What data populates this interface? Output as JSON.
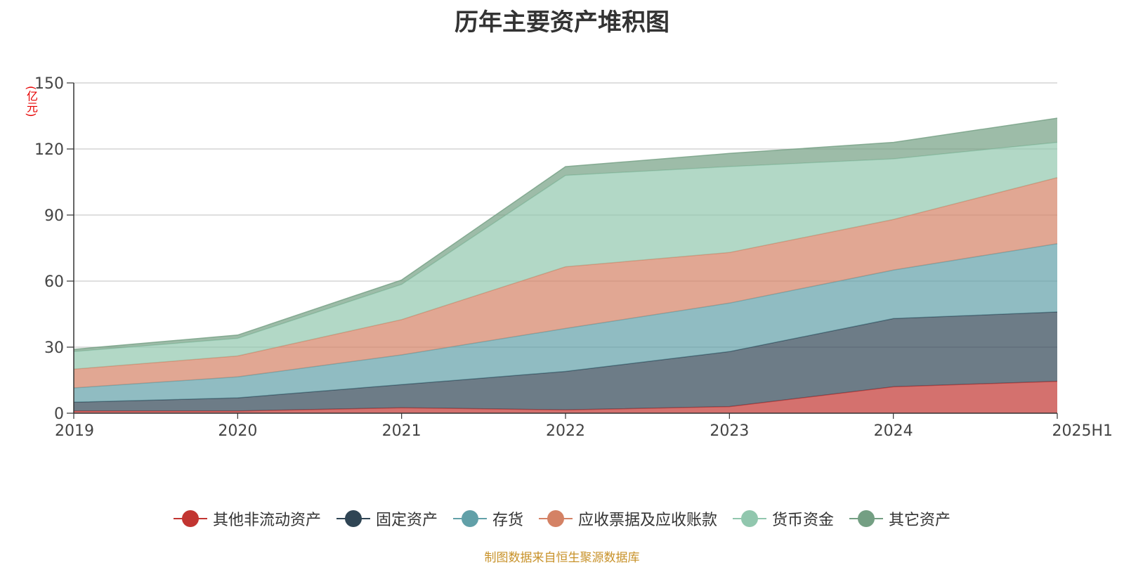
{
  "title": "历年主要资产堆积图",
  "unit_label": "(亿元)",
  "source": "制图数据来自恒生聚源数据库",
  "chart_data": {
    "type": "area",
    "stacked": true,
    "title": "历年主要资产堆积图",
    "ylabel": "(亿元)",
    "ylim": [
      0,
      150
    ],
    "yticks": [
      0,
      30,
      60,
      90,
      120,
      150
    ],
    "grid": true,
    "legend_position": "bottom",
    "categories": [
      "2019",
      "2020",
      "2021",
      "2022",
      "2023",
      "2024",
      "2025H1"
    ],
    "series": [
      {
        "name": "其他非流动资产",
        "color": "#c23531",
        "values": [
          1.0,
          1.0,
          2.5,
          1.5,
          3.0,
          12.0,
          14.5
        ]
      },
      {
        "name": "固定资产",
        "color": "#2f4554",
        "values": [
          4.0,
          6.0,
          10.5,
          17.5,
          25.0,
          31.0,
          31.5
        ]
      },
      {
        "name": "存货",
        "color": "#61a0a8",
        "values": [
          6.5,
          9.5,
          13.5,
          19.5,
          22.0,
          22.0,
          31.0
        ]
      },
      {
        "name": "应收票据及应收账款",
        "color": "#d48265",
        "values": [
          8.5,
          9.5,
          16.0,
          28.0,
          23.0,
          23.0,
          30.0
        ]
      },
      {
        "name": "货币资金",
        "color": "#91c7ae",
        "values": [
          8.0,
          8.0,
          16.0,
          41.5,
          39.0,
          27.5,
          16.0
        ]
      },
      {
        "name": "其它资产",
        "color": "#749f83",
        "values": [
          1.0,
          1.5,
          2.0,
          4.0,
          6.0,
          7.5,
          11.0
        ]
      }
    ]
  }
}
